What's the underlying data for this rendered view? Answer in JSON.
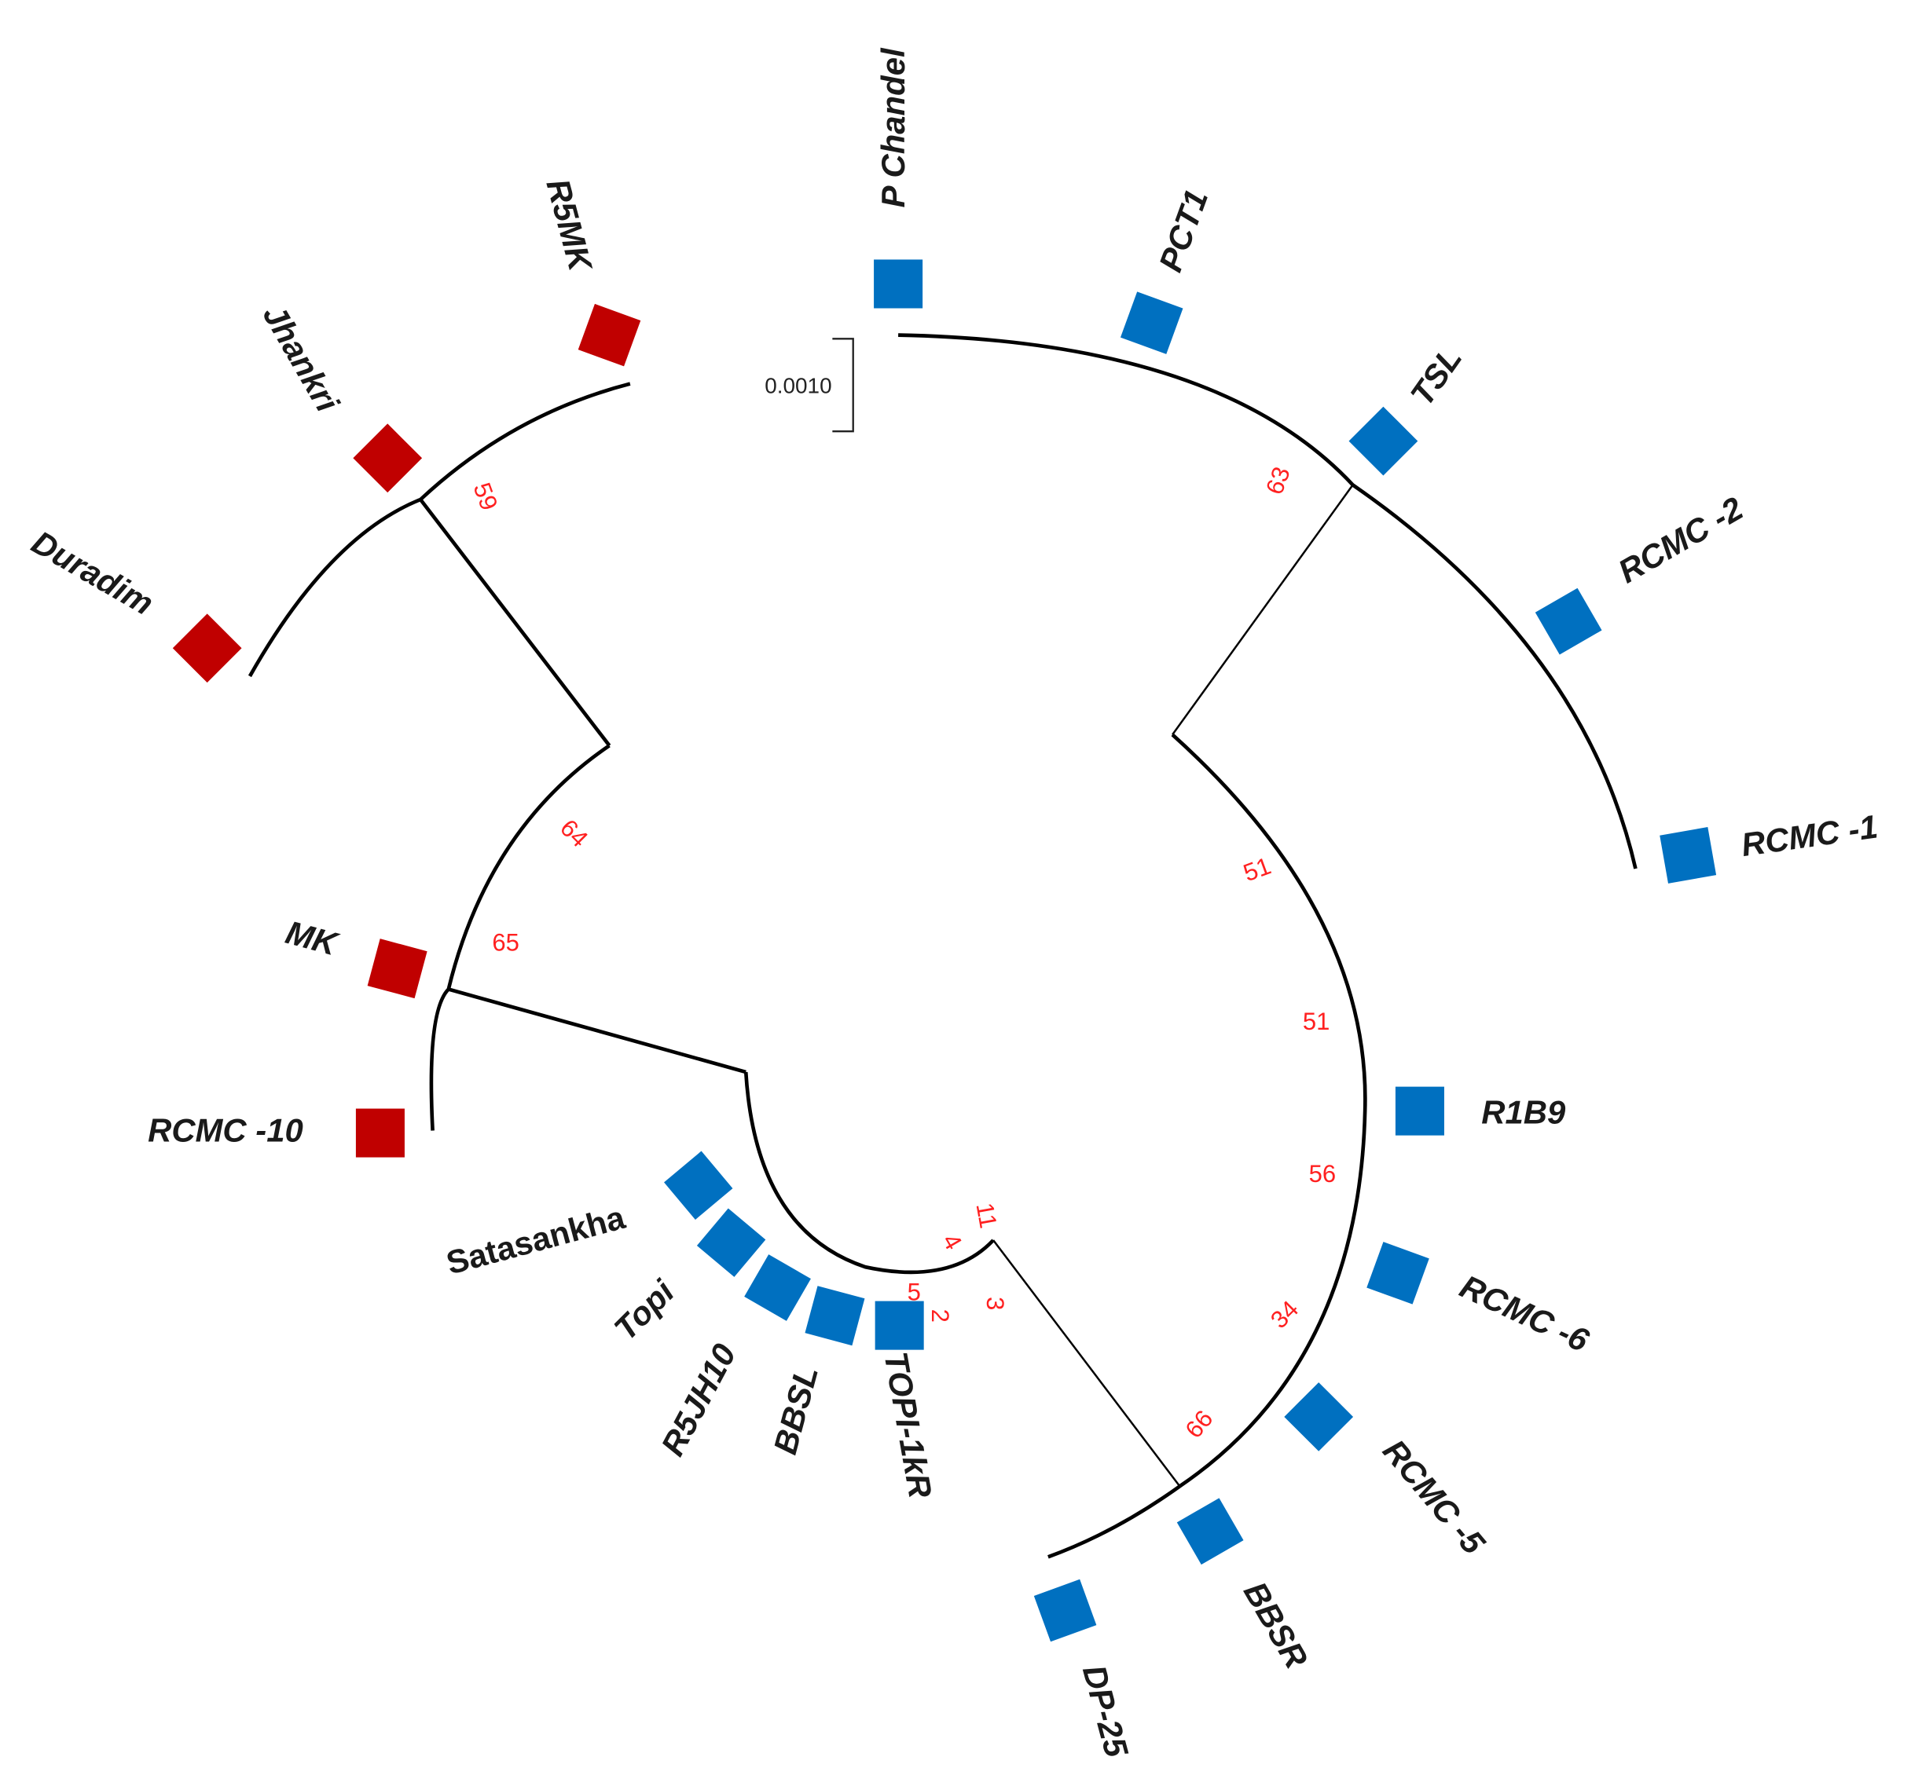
{
  "scale_bar": "0.0010",
  "leaves": [
    {
      "label": "P Chandel",
      "color": "#0070c0"
    },
    {
      "label": "PCT1",
      "color": "#0070c0"
    },
    {
      "label": "TSL",
      "color": "#0070c0"
    },
    {
      "label": "RCMC -2",
      "color": "#0070c0"
    },
    {
      "label": "RCMC -1",
      "color": "#0070c0"
    },
    {
      "label": "R1B9",
      "color": "#0070c0"
    },
    {
      "label": "RCMC -6",
      "color": "#0070c0"
    },
    {
      "label": "RCMC -5",
      "color": "#0070c0"
    },
    {
      "label": "BBSR",
      "color": "#0070c0"
    },
    {
      "label": "DP-25",
      "color": "#0070c0"
    },
    {
      "label": "TOPI-1kR",
      "color": "#0070c0"
    },
    {
      "label": "BBSL",
      "color": "#0070c0"
    },
    {
      "label": "R5JH10",
      "color": "#0070c0"
    },
    {
      "label": "Topi",
      "color": "#0070c0"
    },
    {
      "label": "Satasankha",
      "color": "#0070c0"
    },
    {
      "label": "RCMC -10",
      "color": "#c00000"
    },
    {
      "label": "MK",
      "color": "#c00000"
    },
    {
      "label": "Duradim",
      "color": "#c00000"
    },
    {
      "label": "Jhankri",
      "color": "#c00000"
    },
    {
      "label": "R5MK",
      "color": "#c00000"
    }
  ],
  "bootstrap": [
    59,
    64,
    65,
    63,
    51,
    51,
    56,
    34,
    66,
    11,
    4,
    3,
    2,
    5
  ]
}
